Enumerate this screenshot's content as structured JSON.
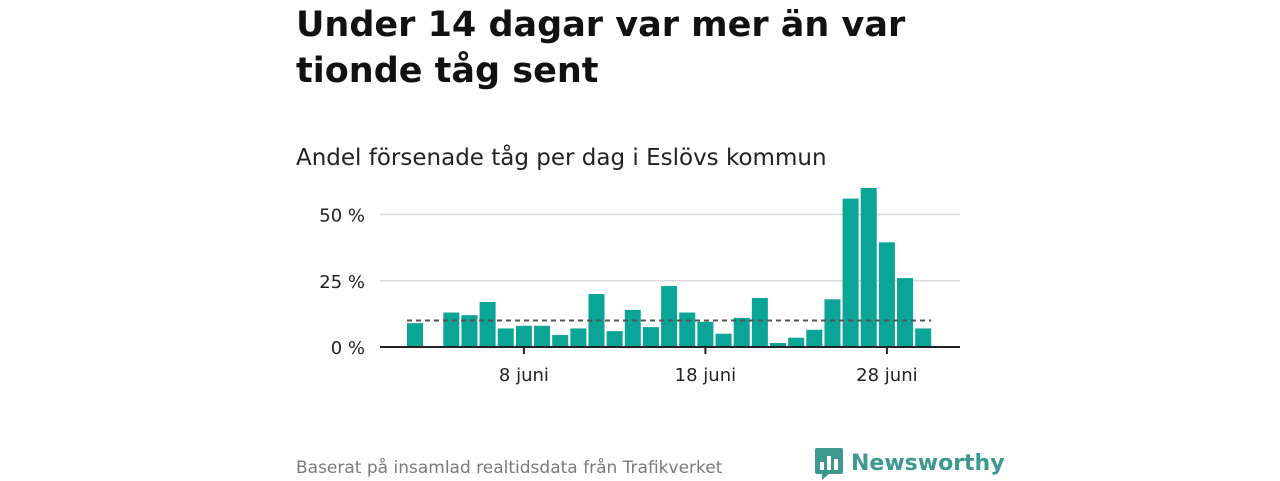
{
  "headline": "Under 14 dagar var mer än var tionde tåg sent",
  "subtitle": "Andel försenade tåg per dag i Eslövs kommun",
  "source": "Baserat på insamlad realtidsdata från Trafikverket",
  "brand": {
    "name": "Newsworthy",
    "icon": "bar-chart-speech-bubble-icon",
    "color": "#3d9990"
  },
  "chart_data": {
    "type": "bar",
    "x": [
      2,
      3,
      4,
      5,
      6,
      7,
      8,
      9,
      10,
      11,
      12,
      13,
      14,
      15,
      16,
      17,
      18,
      19,
      20,
      21,
      22,
      23,
      24,
      25,
      26,
      27,
      28,
      29,
      30
    ],
    "x_unit": "juni",
    "values": [
      9,
      0,
      13,
      12,
      17,
      7,
      8,
      8,
      4.5,
      7,
      20,
      6,
      14,
      7.5,
      23,
      13,
      9.5,
      5,
      11,
      18.5,
      1.5,
      3.5,
      6.5,
      18,
      56,
      60,
      39.5,
      26,
      7
    ],
    "reference_line": 10,
    "ylim": [
      0,
      60
    ],
    "yticks": [
      0,
      25,
      50
    ],
    "ytick_labels": [
      "0 %",
      "25 %",
      "50 %"
    ],
    "xticks": [
      8,
      18,
      28
    ],
    "xtick_labels": [
      "8 juni",
      "18 juni",
      "28 juni"
    ],
    "grid": true,
    "colors": {
      "bar": "#0aa596",
      "grid": "#d9d9d9",
      "reference": "#555555",
      "axis": "#222222"
    }
  }
}
